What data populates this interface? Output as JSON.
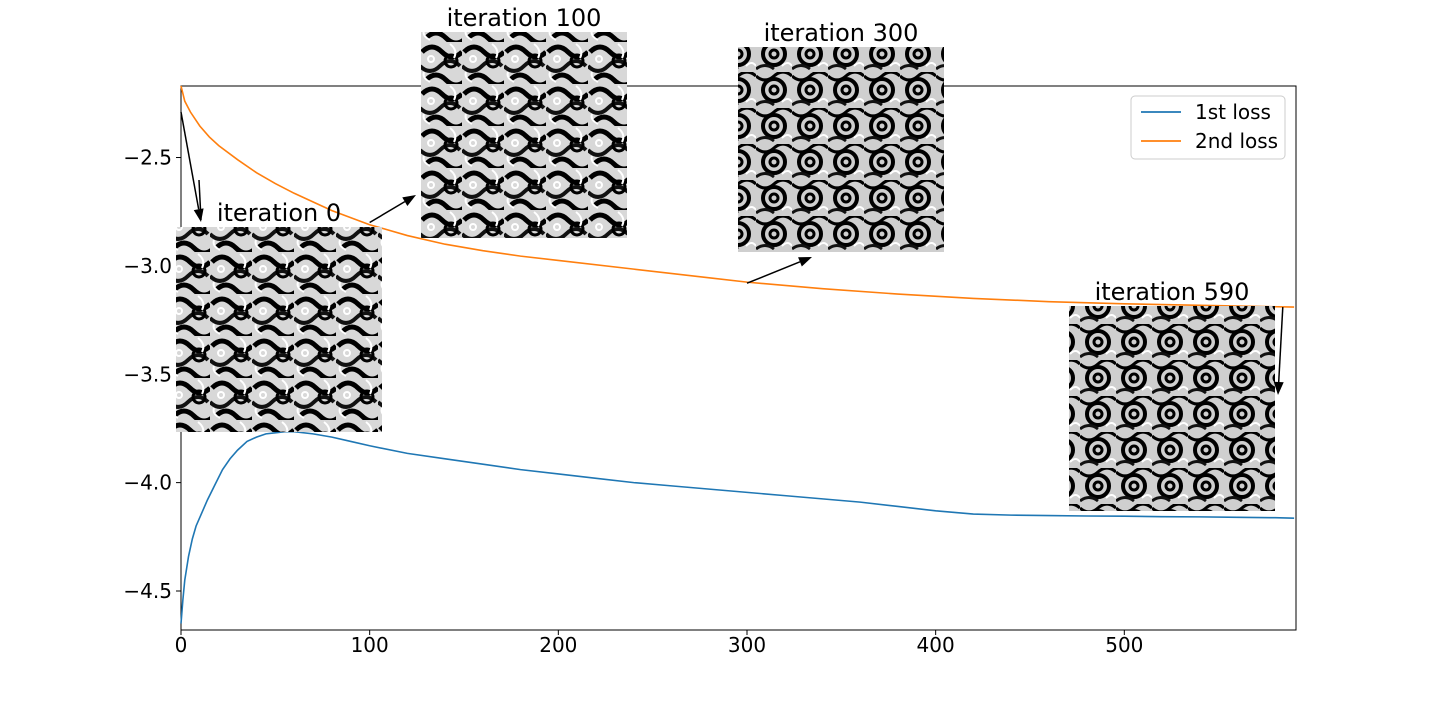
{
  "chart_data": {
    "type": "line",
    "title": "",
    "xlabel": "",
    "ylabel": "",
    "xlim": [
      0,
      591
    ],
    "ylim": [
      -4.68,
      -2.17
    ],
    "x_ticks": [
      0,
      100,
      200,
      300,
      400,
      500
    ],
    "y_ticks": [
      -2.5,
      -3.0,
      -3.5,
      -4.0,
      -4.5
    ],
    "x_tick_labels": [
      "0",
      "100",
      "200",
      "300",
      "400",
      "500"
    ],
    "y_tick_labels": [
      "−2.5",
      "−3.0",
      "−3.5",
      "−4.0",
      "−4.5"
    ],
    "grid": false,
    "legend": {
      "placement": "top-right",
      "entries": [
        "1st loss",
        "2nd loss"
      ]
    },
    "series": [
      {
        "name": "1st loss",
        "color": "#1f77b4",
        "x": [
          0,
          1,
          2,
          4,
          6,
          8,
          10,
          14,
          18,
          22,
          26,
          30,
          35,
          40,
          45,
          50,
          55,
          60,
          70,
          80,
          90,
          100,
          120,
          140,
          160,
          180,
          200,
          220,
          240,
          260,
          280,
          300,
          320,
          340,
          360,
          380,
          400,
          420,
          440,
          460,
          480,
          500,
          520,
          540,
          560,
          580,
          590
        ],
        "values": [
          -4.65,
          -4.54,
          -4.45,
          -4.34,
          -4.26,
          -4.2,
          -4.16,
          -4.08,
          -4.01,
          -3.94,
          -3.89,
          -3.85,
          -3.81,
          -3.79,
          -3.775,
          -3.77,
          -3.765,
          -3.765,
          -3.775,
          -3.79,
          -3.81,
          -3.83,
          -3.865,
          -3.89,
          -3.915,
          -3.94,
          -3.96,
          -3.98,
          -4.0,
          -4.015,
          -4.03,
          -4.045,
          -4.06,
          -4.075,
          -4.09,
          -4.11,
          -4.13,
          -4.145,
          -4.15,
          -4.152,
          -4.154,
          -4.155,
          -4.157,
          -4.158,
          -4.16,
          -4.162,
          -4.164
        ]
      },
      {
        "name": "2nd loss",
        "color": "#ff7f0e",
        "x": [
          0,
          2,
          5,
          10,
          15,
          20,
          30,
          40,
          50,
          60,
          80,
          100,
          120,
          140,
          160,
          180,
          200,
          240,
          280,
          300,
          340,
          380,
          420,
          460,
          500,
          540,
          590
        ],
        "values": [
          -2.17,
          -2.24,
          -2.29,
          -2.355,
          -2.405,
          -2.445,
          -2.51,
          -2.57,
          -2.62,
          -2.665,
          -2.745,
          -2.81,
          -2.86,
          -2.9,
          -2.93,
          -2.955,
          -2.975,
          -3.015,
          -3.055,
          -3.075,
          -3.105,
          -3.13,
          -3.15,
          -3.165,
          -3.175,
          -3.182,
          -3.19
        ]
      }
    ],
    "insets": [
      {
        "label": "iteration 0",
        "arrow_to": {
          "x": 11,
          "y": -2.8
        },
        "arrow_from": {
          "x": 0,
          "y": -2.29
        }
      },
      {
        "label": "iteration 100",
        "arrow_from": {
          "x": 100,
          "y": -2.8
        }
      },
      {
        "label": "iteration 300",
        "arrow_from": {
          "x": 300,
          "y": -3.08
        }
      },
      {
        "label": "iteration 590",
        "arrow_from": {
          "x": 584,
          "y": -3.19
        }
      }
    ]
  }
}
